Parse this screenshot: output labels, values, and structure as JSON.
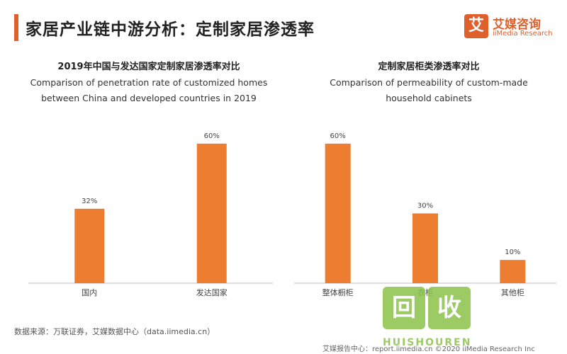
{
  "header": {
    "title": "家居产业链中游分析：定制家居渗透率",
    "accent_color": "#e0602c"
  },
  "logo": {
    "glyph": "艾",
    "name_cn": "艾媒咨询",
    "name_en": "iiMedia Research",
    "color": "#e0602c"
  },
  "chart_data": [
    {
      "type": "bar",
      "title": "2019年中国与发达国家定制家居渗透率对比",
      "subtitle_lines": [
        "Comparison of penetration rate of customized homes",
        "between China and developed countries in 2019"
      ],
      "categories": [
        "国内",
        "发达国家"
      ],
      "values": [
        32,
        60
      ],
      "value_labels": [
        "32%",
        "60%"
      ],
      "ylim": [
        0,
        70
      ],
      "bar_color": "#ed7d31",
      "grid": false
    },
    {
      "type": "bar",
      "title": "定制家居柜类渗透率对比",
      "subtitle_lines": [
        "Comparison of permeability of custom-made",
        "household cabinets"
      ],
      "categories": [
        "整体橱柜",
        "衣柜",
        "其他柜"
      ],
      "values": [
        60,
        30,
        10
      ],
      "value_labels": [
        "60%",
        "30%",
        "10%"
      ],
      "ylim": [
        0,
        70
      ],
      "bar_color": "#ed7d31",
      "grid": false
    }
  ],
  "source": "数据来源：万联证券，艾媒数据中心（data.iimedia.cn）",
  "footer": "艾媒报告中心：report.iimedia.cn  ©2020 iiMedia Research Inc",
  "watermark": {
    "glyph_1": "回",
    "glyph_2": "收",
    "text_en": "HUISHOUREN",
    "color": "#8bc34a"
  }
}
